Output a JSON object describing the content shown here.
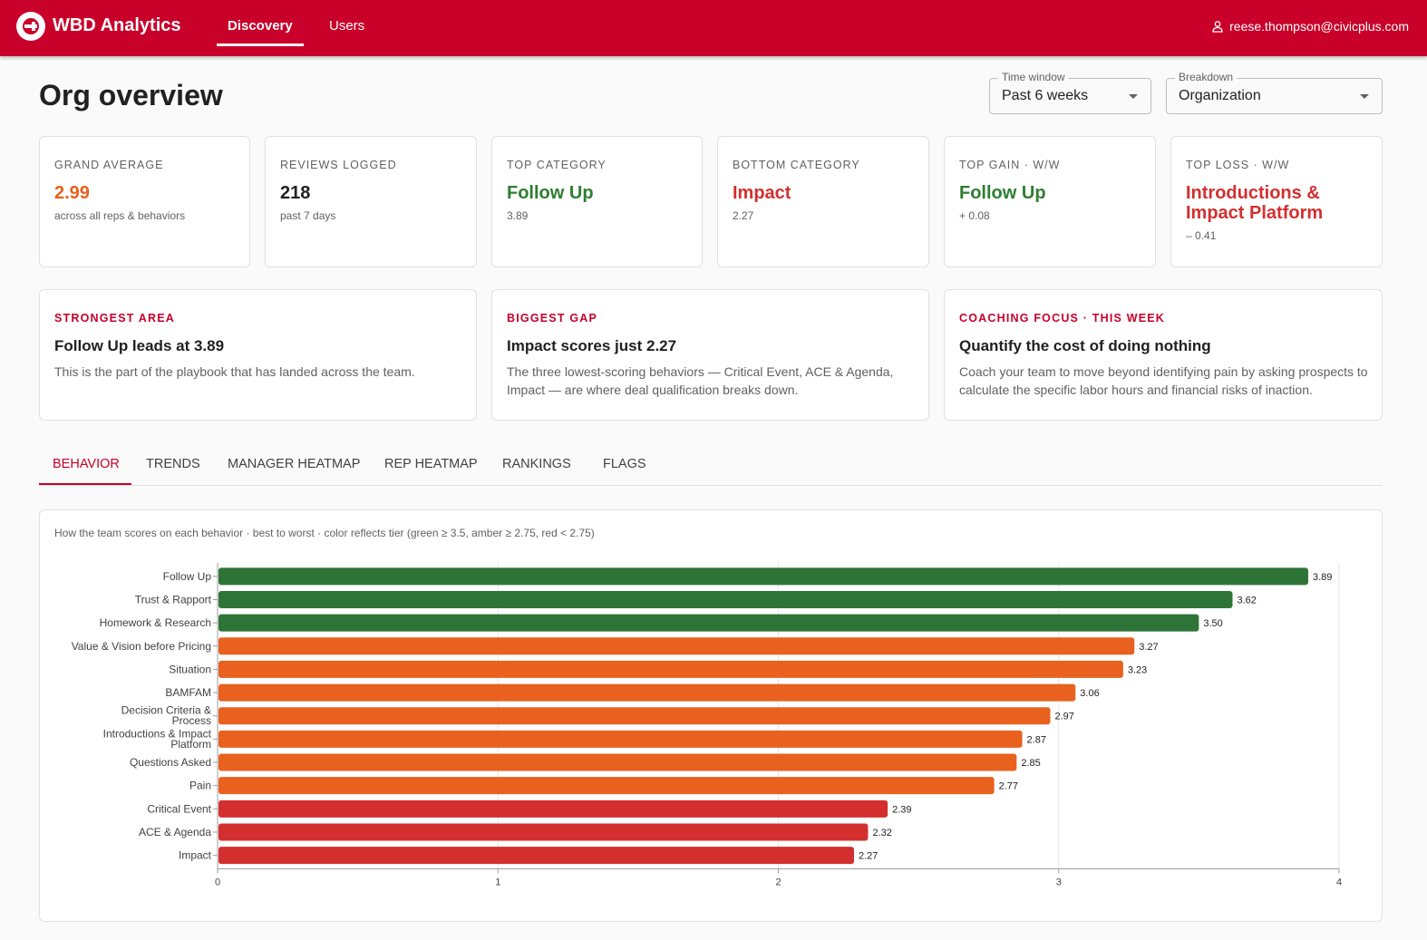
{
  "header": {
    "app_title": "WBD Analytics",
    "nav": [
      {
        "label": "Discovery",
        "active": true
      },
      {
        "label": "Users",
        "active": false
      }
    ],
    "user_email": "reese.thompson@civicplus.com",
    "brand_color": "#c8002a"
  },
  "page": {
    "title": "Org overview",
    "time_window": {
      "label": "Time window",
      "value": "Past 6 weeks"
    },
    "breakdown": {
      "label": "Breakdown",
      "value": "Organization"
    }
  },
  "kpis": [
    {
      "label": "GRAND AVERAGE",
      "value": "2.99",
      "sub": "across all reps & behaviors",
      "color": "#e8611a"
    },
    {
      "label": "REVIEWS LOGGED",
      "value": "218",
      "sub": "past 7 days",
      "color": "#212121"
    },
    {
      "label": "TOP CATEGORY",
      "value": "Follow Up",
      "sub": "3.89",
      "color": "#2e7d32"
    },
    {
      "label": "BOTTOM CATEGORY",
      "value": "Impact",
      "sub": "2.27",
      "color": "#d32f2f"
    },
    {
      "label": "TOP GAIN · W/W",
      "value": "Follow Up",
      "sub": "+ 0.08",
      "color": "#2e7d32"
    },
    {
      "label": "TOP LOSS · W/W",
      "value": "Introductions & Impact Platform",
      "sub": "– 0.41",
      "color": "#d32f2f"
    }
  ],
  "insights": [
    {
      "label": "STRONGEST AREA",
      "title": "Follow Up leads at 3.89",
      "body": "This is the part of the playbook that has landed across the team."
    },
    {
      "label": "BIGGEST GAP",
      "title": "Impact scores just 2.27",
      "body": "The three lowest-scoring behaviors — Critical Event, ACE & Agenda, Impact — are where deal qualification breaks down."
    },
    {
      "label": "COACHING FOCUS · THIS WEEK",
      "title": "Quantify the cost of doing nothing",
      "body": "Coach your team to move beyond identifying pain by asking prospects to calculate the specific labor hours and financial risks of inaction."
    }
  ],
  "tabs": [
    {
      "label": "BEHAVIOR",
      "active": true
    },
    {
      "label": "TRENDS",
      "active": false
    },
    {
      "label": "MANAGER HEATMAP",
      "active": false
    },
    {
      "label": "REP HEATMAP",
      "active": false
    },
    {
      "label": "RANKINGS",
      "active": false
    },
    {
      "label": "FLAGS",
      "active": false
    }
  ],
  "chart_caption": "How the team scores on each behavior · best to worst · color reflects tier (green ≥ 3.5, amber ≥ 2.75, red < 2.75)",
  "chart_data": {
    "type": "bar",
    "orientation": "horizontal",
    "categories": [
      "Follow Up",
      "Trust & Rapport",
      "Homework & Research",
      "Value & Vision before Pricing",
      "Situation",
      "BAMFAM",
      "Decision Criteria & Process",
      "Introductions & Impact Platform",
      "Questions Asked",
      "Pain",
      "Critical Event",
      "ACE & Agenda",
      "Impact"
    ],
    "category_lines": [
      [
        "Follow Up"
      ],
      [
        "Trust & Rapport"
      ],
      [
        "Homework & Research"
      ],
      [
        "Value & Vision before Pricing"
      ],
      [
        "Situation"
      ],
      [
        "BAMFAM"
      ],
      [
        "Decision Criteria &",
        "Process"
      ],
      [
        "Introductions & Impact",
        "Platform"
      ],
      [
        "Questions Asked"
      ],
      [
        "Pain"
      ],
      [
        "Critical Event"
      ],
      [
        "ACE & Agenda"
      ],
      [
        "Impact"
      ]
    ],
    "values": [
      3.89,
      3.62,
      3.5,
      3.27,
      3.23,
      3.06,
      2.97,
      2.87,
      2.85,
      2.77,
      2.39,
      2.32,
      2.27
    ],
    "value_labels": [
      "3.89",
      "3.62",
      "3.50",
      "3.27",
      "3.23",
      "3.06",
      "2.97",
      "2.87",
      "2.85",
      "2.77",
      "2.39",
      "2.32",
      "2.27"
    ],
    "xlim": [
      0,
      4
    ],
    "xticks": [
      "0",
      "1",
      "2",
      "3",
      "4"
    ],
    "grid": true,
    "tier_colors": {
      "green": "#2e7437",
      "amber": "#e8611f",
      "red": "#d32f2f"
    },
    "tier_thresholds": {
      "green": 3.5,
      "amber": 2.75
    }
  }
}
